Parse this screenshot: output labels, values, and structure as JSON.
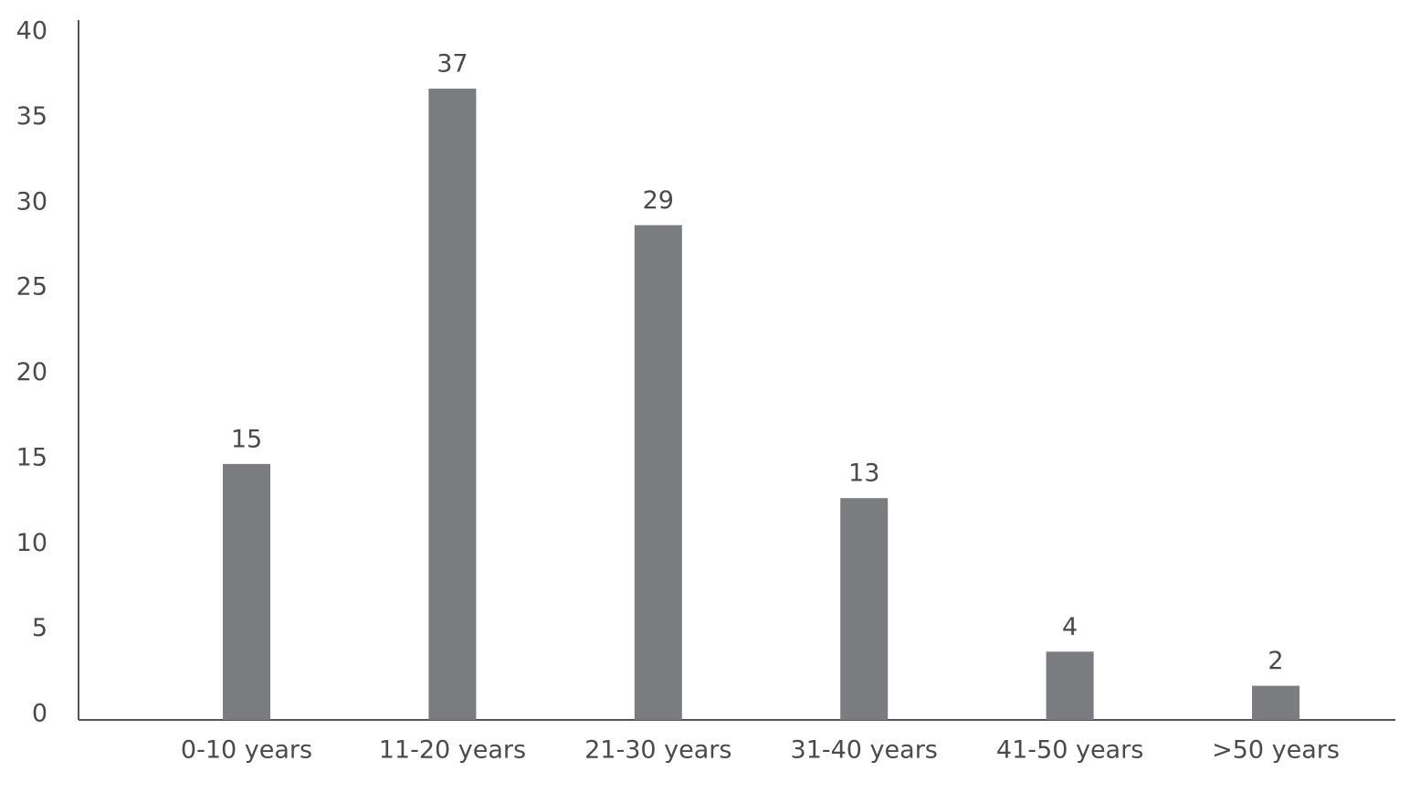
{
  "chart_data": {
    "type": "bar",
    "categories": [
      "0-10 years",
      "11-20 years",
      "21-30 years",
      "31-40 years",
      "41-50 years",
      ">50 years"
    ],
    "values": [
      15,
      37,
      29,
      13,
      4,
      2
    ],
    "color": "#7b7c80",
    "ylim": [
      0,
      40
    ],
    "yticks": [
      0,
      5,
      10,
      15,
      20,
      25,
      30,
      35,
      40
    ],
    "grid": false
  }
}
